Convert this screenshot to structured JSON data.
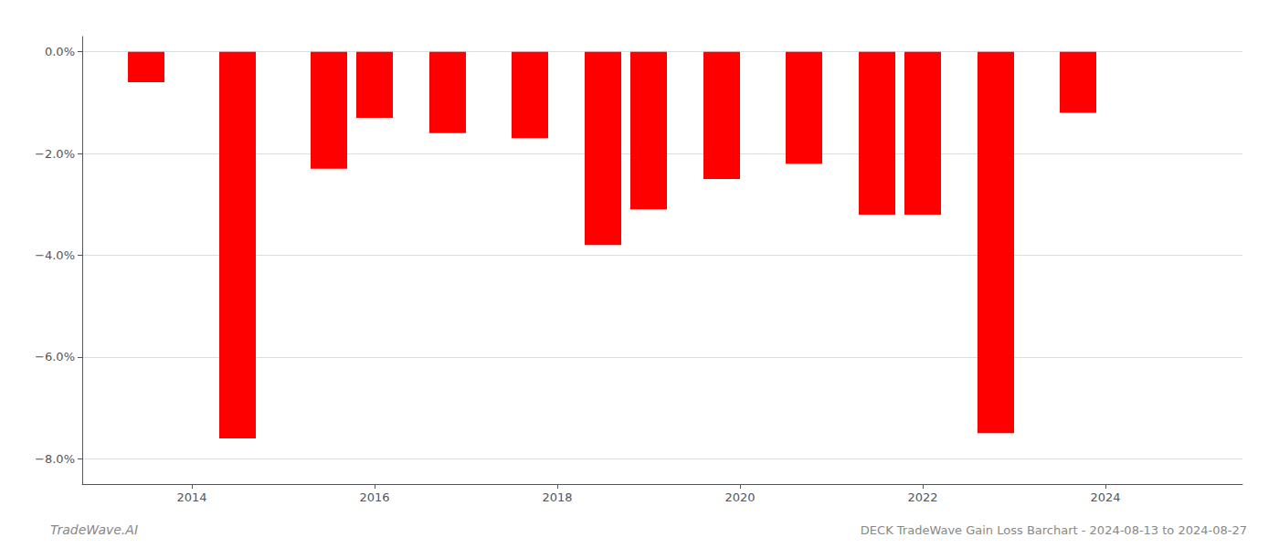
{
  "chart_data": {
    "type": "bar",
    "title": "DECK TradeWave Gain Loss Barchart - 2024-08-13 to 2024-08-27",
    "annotations": [
      "TradeWave.AI"
    ],
    "x": [
      2013.5,
      2014.5,
      2015.5,
      2016.0,
      2016.8,
      2017.7,
      2018.5,
      2019.0,
      2019.8,
      2020.7,
      2021.5,
      2022.0,
      2022.8,
      2023.7,
      2024.5
    ],
    "values": [
      -0.006,
      -0.076,
      -0.023,
      -0.013,
      -0.016,
      -0.017,
      -0.038,
      -0.031,
      -0.025,
      -0.022,
      -0.032,
      -0.032,
      -0.075,
      -0.012,
      -0.0
    ],
    "color": "#ff0000",
    "xlim": [
      2012.8,
      2025.5
    ],
    "xticks": [
      2014,
      2016,
      2018,
      2020,
      2022,
      2024
    ],
    "ylim": [
      -0.085,
      0.003
    ],
    "yticks": [
      {
        "value": 0.0,
        "label": "0.0%"
      },
      {
        "value": -0.02,
        "label": "−2.0%"
      },
      {
        "value": -0.04,
        "label": "−4.0%"
      },
      {
        "value": -0.06,
        "label": "−6.0%"
      },
      {
        "value": -0.08,
        "label": "−8.0%"
      }
    ],
    "grid": true
  }
}
